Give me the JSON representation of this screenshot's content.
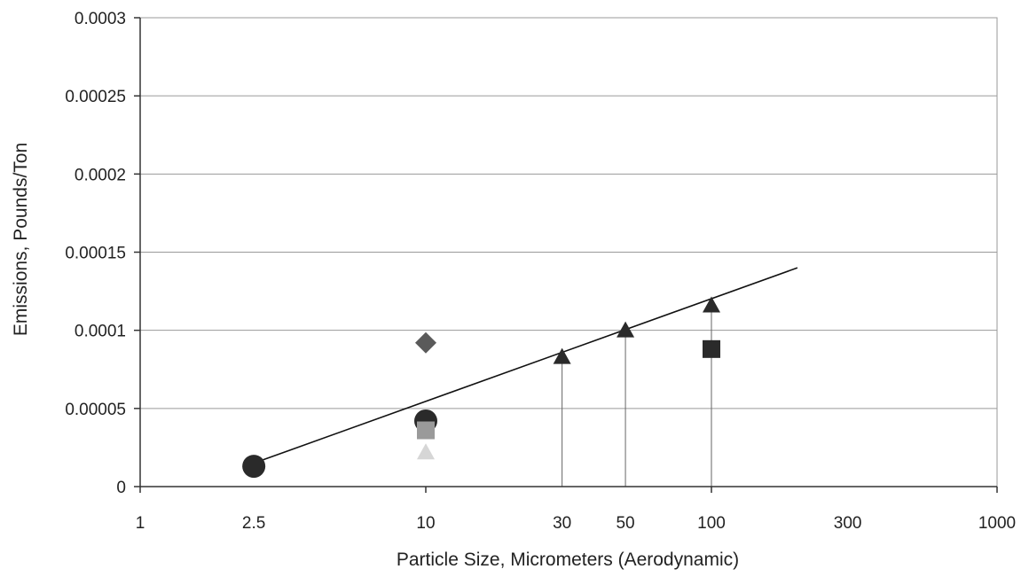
{
  "chart_data": {
    "type": "scatter",
    "title": "",
    "xlabel": "Particle Size, Micrometers (Aerodynamic)",
    "ylabel": "Emissions, Pounds/Ton",
    "x_scale": "log",
    "xlim": [
      1,
      1000
    ],
    "ylim": [
      0,
      0.0003
    ],
    "x_ticks": [
      {
        "value": 1,
        "label": "1"
      },
      {
        "value": 2.5,
        "label": "2.5"
      },
      {
        "value": 10,
        "label": "10"
      },
      {
        "value": 30,
        "label": "30"
      },
      {
        "value": 50,
        "label": "50"
      },
      {
        "value": 100,
        "label": "100"
      },
      {
        "value": 300,
        "label": "300"
      },
      {
        "value": 1000,
        "label": "1000"
      }
    ],
    "y_ticks": [
      {
        "value": 0,
        "label": "0"
      },
      {
        "value": 5e-05,
        "label": "0.00005"
      },
      {
        "value": 0.0001,
        "label": "0.0001"
      },
      {
        "value": 0.00015,
        "label": "0.00015"
      },
      {
        "value": 0.0002,
        "label": "0.0002"
      },
      {
        "value": 0.00025,
        "label": "0.00025"
      },
      {
        "value": 0.0003,
        "label": "0.0003"
      }
    ],
    "grid": {
      "horizontal": true,
      "vertical": false
    },
    "legend": "none",
    "series": [
      {
        "marker": "circle",
        "color": "#2a2a2a",
        "points": [
          {
            "x": 2.5,
            "y": 1.3e-05
          },
          {
            "x": 10,
            "y": 4.2e-05
          }
        ]
      },
      {
        "marker": "diamond",
        "color": "#5a5a5a",
        "points": [
          {
            "x": 10,
            "y": 9.2e-05
          }
        ]
      },
      {
        "marker": "square",
        "color": "#9a9a9a",
        "points": [
          {
            "x": 10,
            "y": 3.6e-05
          }
        ]
      },
      {
        "marker": "triangle",
        "color": "#d6d6d6",
        "points": [
          {
            "x": 10,
            "y": 2.2e-05
          }
        ]
      },
      {
        "marker": "square",
        "color": "#2a2a2a",
        "points": [
          {
            "x": 100,
            "y": 8.8e-05
          }
        ]
      },
      {
        "marker": "triangle",
        "color": "#2a2a2a",
        "drop_lines": true,
        "points": [
          {
            "x": 30,
            "y": 8.3e-05
          },
          {
            "x": 50,
            "y": 0.0001
          },
          {
            "x": 100,
            "y": 0.000116
          }
        ]
      }
    ],
    "trend_line": {
      "color": "#111111",
      "points": [
        {
          "x": 2.5,
          "y": 1.5e-05
        },
        {
          "x": 200,
          "y": 0.00014
        }
      ]
    }
  }
}
